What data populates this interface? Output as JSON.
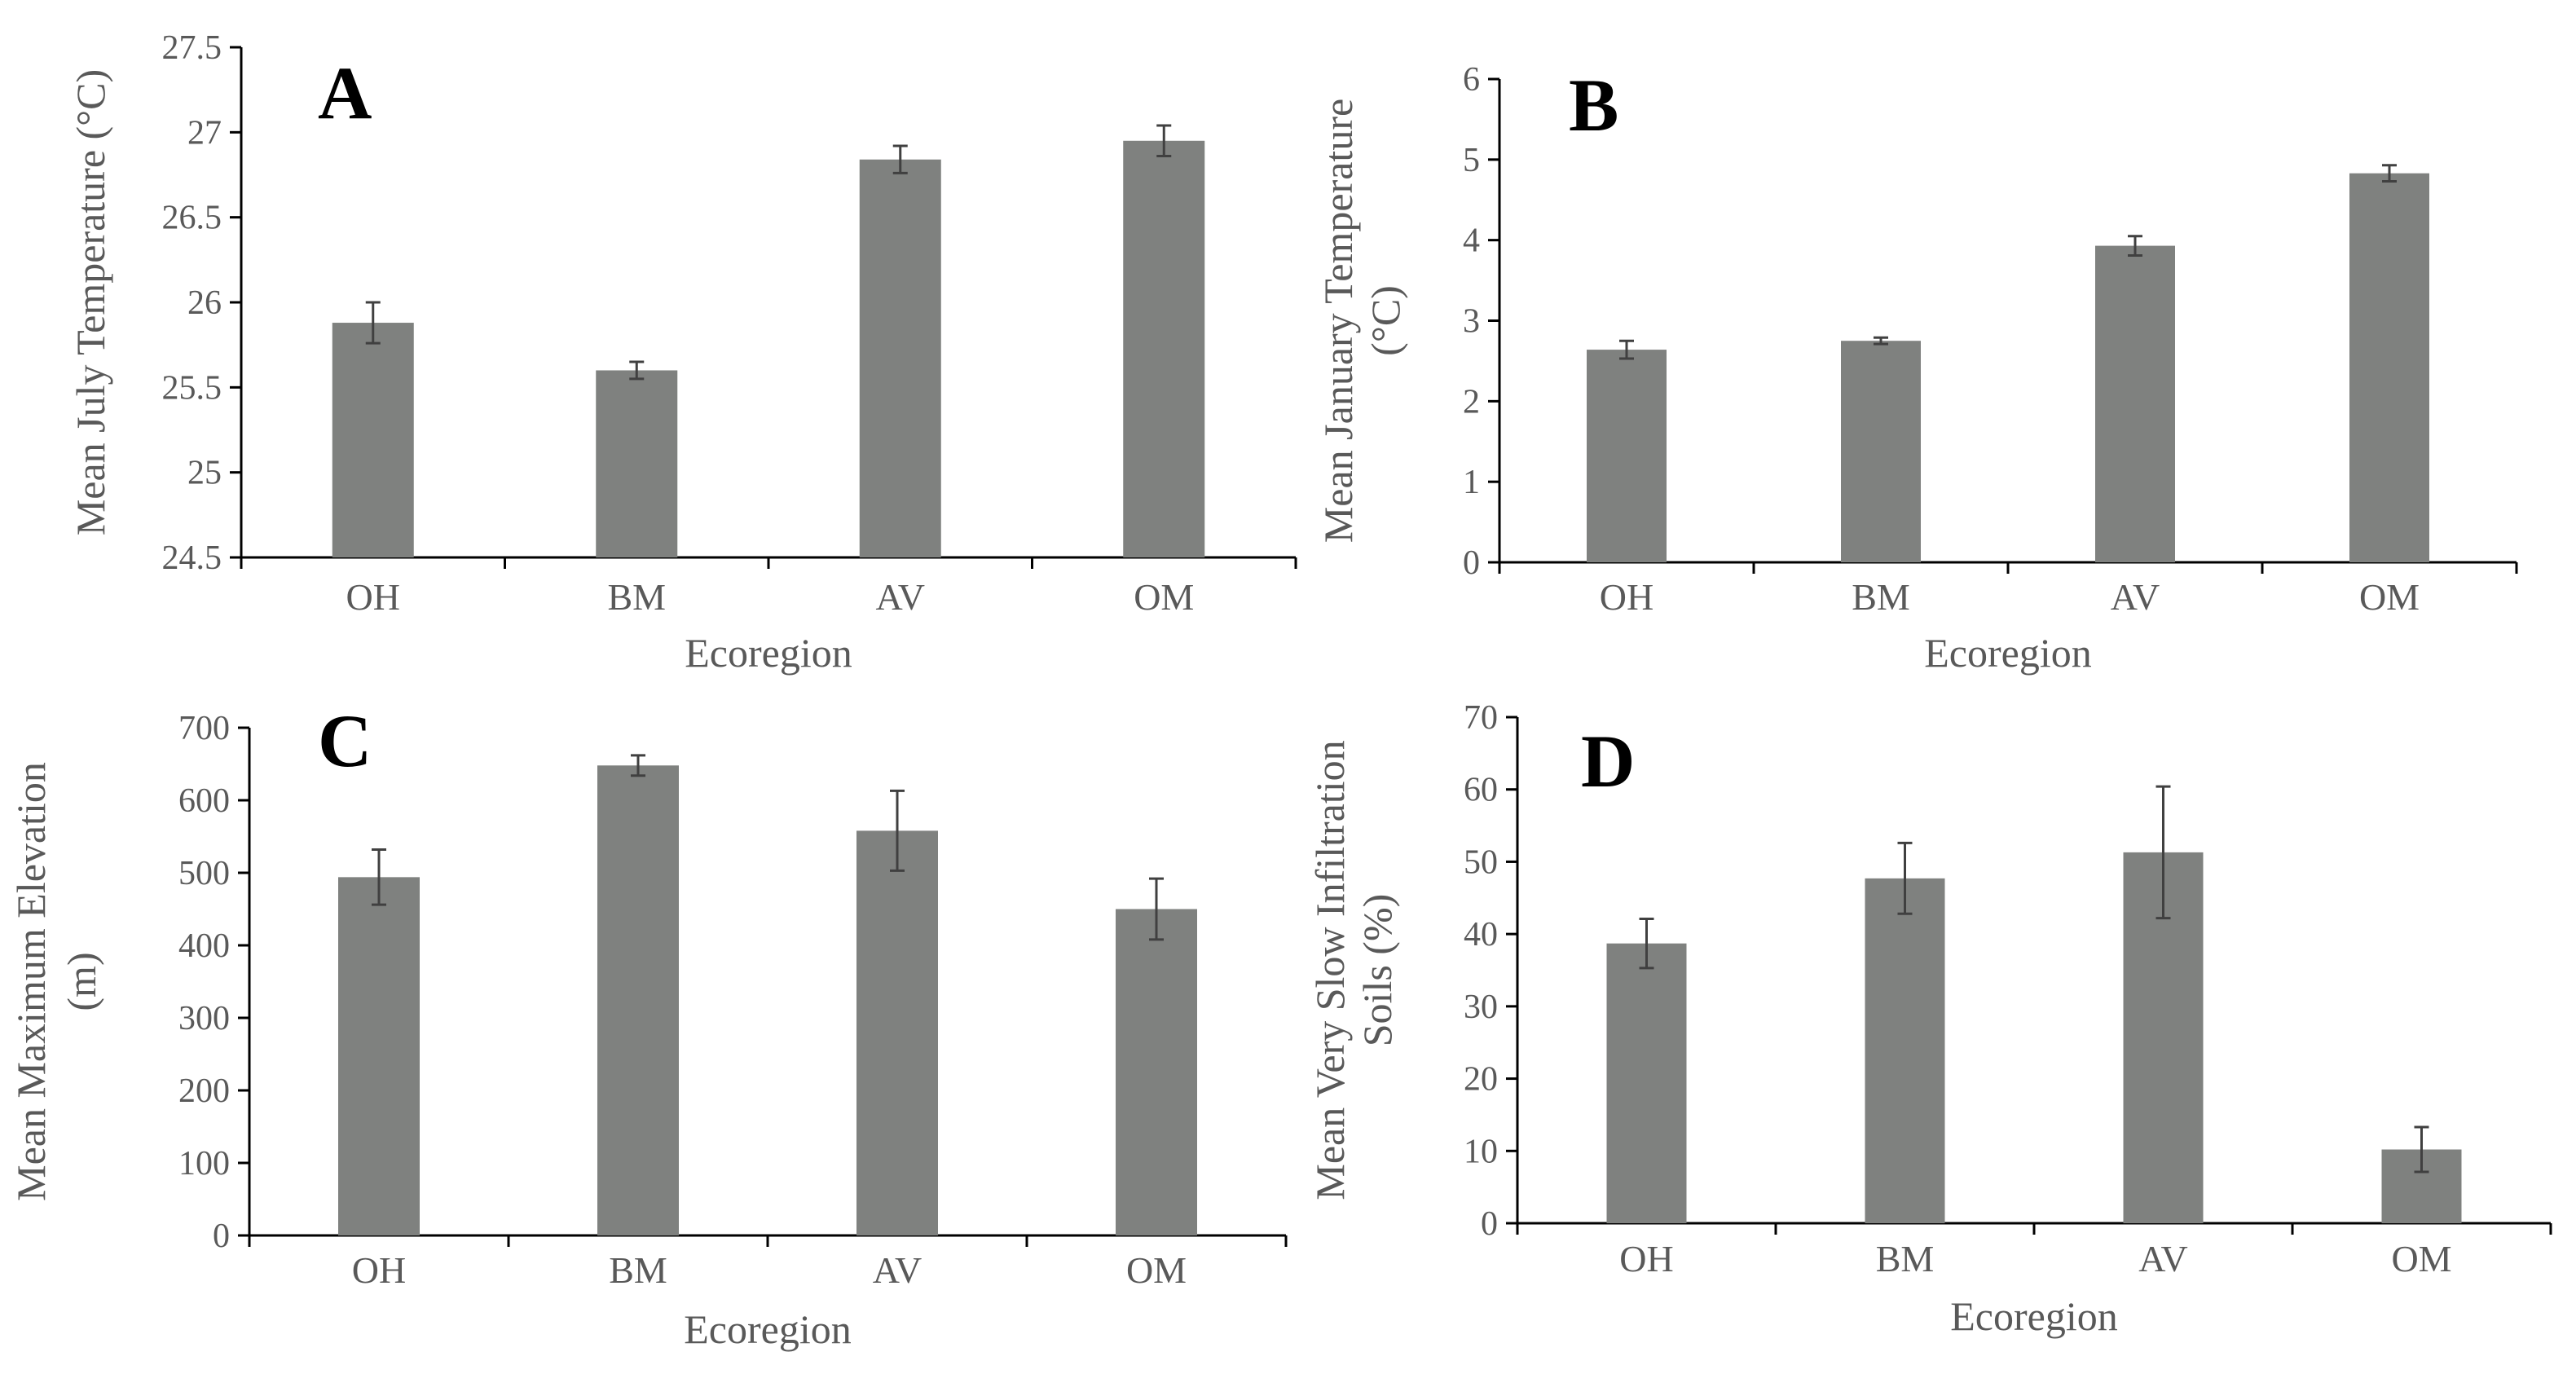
{
  "figure": {
    "background": "#ffffff",
    "bar_color": "#7f817f",
    "error_color": "#404040"
  },
  "chart_data": [
    {
      "type": "bar",
      "panel": "A",
      "title": "",
      "xlabel": "Ecoregion",
      "ylabel": "Mean July Temperature (°C)",
      "ylabel_lines": [
        "Mean July Temperature (°C)"
      ],
      "categories": [
        "OH",
        "BM",
        "AV",
        "OM"
      ],
      "values": [
        25.88,
        25.6,
        26.84,
        26.95
      ],
      "errors": [
        0.12,
        0.05,
        0.08,
        0.09
      ],
      "ylim": [
        24.5,
        27.5
      ],
      "yticks": [
        24.5,
        25,
        25.5,
        26,
        26.5,
        27,
        27.5
      ],
      "ytick_labels": [
        "24.5",
        "25",
        "25.5",
        "26",
        "26.5",
        "27",
        "27.5"
      ]
    },
    {
      "type": "bar",
      "panel": "B",
      "title": "",
      "xlabel": "Ecoregion",
      "ylabel": "Mean January Temperature (°C)",
      "ylabel_lines": [
        "Mean January Temperature",
        "(°C)"
      ],
      "categories": [
        "OH",
        "BM",
        "AV",
        "OM"
      ],
      "values": [
        2.64,
        2.75,
        3.93,
        4.83
      ],
      "errors": [
        0.11,
        0.04,
        0.12,
        0.1
      ],
      "ylim": [
        0,
        6
      ],
      "yticks": [
        0,
        1,
        2,
        3,
        4,
        5,
        6
      ],
      "ytick_labels": [
        "0",
        "1",
        "2",
        "3",
        "4",
        "5",
        "6"
      ]
    },
    {
      "type": "bar",
      "panel": "C",
      "title": "",
      "xlabel": "Ecoregion",
      "ylabel": "Mean Maximum Elevation (m)",
      "ylabel_lines": [
        "Mean Maximum Elevation",
        "(m)"
      ],
      "categories": [
        "OH",
        "BM",
        "AV",
        "OM"
      ],
      "values": [
        494,
        648,
        558,
        450
      ],
      "errors": [
        38,
        14,
        55,
        42
      ],
      "ylim": [
        0,
        700
      ],
      "yticks": [
        0,
        100,
        200,
        300,
        400,
        500,
        600,
        700
      ],
      "ytick_labels": [
        "0",
        "100",
        "200",
        "300",
        "400",
        "500",
        "600",
        "700"
      ]
    },
    {
      "type": "bar",
      "panel": "D",
      "title": "",
      "xlabel": "Ecoregion",
      "ylabel": "Mean Very Slow Infiltration Soils (%)",
      "ylabel_lines": [
        "Mean Very Slow Infiltration",
        "Soils (%)"
      ],
      "categories": [
        "OH",
        "BM",
        "AV",
        "OM"
      ],
      "values": [
        38.7,
        47.7,
        51.3,
        10.2
      ],
      "errors": [
        3.4,
        4.9,
        9.1,
        3.1
      ],
      "ylim": [
        0,
        70
      ],
      "yticks": [
        0,
        10,
        20,
        30,
        40,
        50,
        60,
        70
      ],
      "ytick_labels": [
        "0",
        "10",
        "20",
        "30",
        "40",
        "50",
        "60",
        "70"
      ]
    }
  ]
}
